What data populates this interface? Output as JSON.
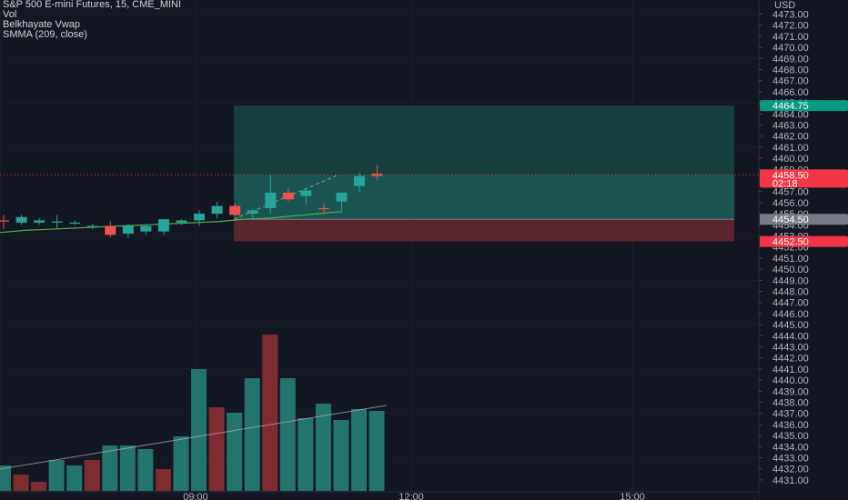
{
  "legend": {
    "symbol": "S&P 500 E-mini Futures, 15, CME_MINI",
    "vol": "Vol",
    "vwap": "Belkhayate Vwap",
    "smma": "SMMA (209, close)"
  },
  "price_scale": {
    "currency": "USD",
    "labels": [
      "4473.00",
      "4472.00",
      "4471.00",
      "4470.00",
      "4469.00",
      "4468.00",
      "4467.00",
      "4466.00",
      "4465.00",
      "4464.00",
      "4463.00",
      "4462.00",
      "4461.00",
      "4460.00",
      "4459.00",
      "4458.00",
      "4457.00",
      "4456.00",
      "4455.00",
      "4454.00",
      "4453.00",
      "4452.00",
      "4451.00",
      "4450.00",
      "4449.00",
      "4448.00",
      "4447.00",
      "4446.00",
      "4445.00",
      "4444.00",
      "4443.00",
      "4442.00",
      "4441.00",
      "4440.00",
      "4439.00",
      "4438.00",
      "4437.00",
      "4436.00",
      "4435.00",
      "4434.00",
      "4433.00",
      "4432.00",
      "4431.00"
    ]
  },
  "time_scale": {
    "labels": [
      "09:00",
      "12:00",
      "15:00"
    ]
  },
  "tags": {
    "target": {
      "text": "4464.75",
      "color": "#089981"
    },
    "current": {
      "text": "4458.50",
      "subtext": "02:18",
      "color": "#f23645"
    },
    "entry": {
      "text": "4454.50",
      "color": "#787b86"
    },
    "stop": {
      "text": "4452.50",
      "color": "#f23645"
    }
  },
  "colors": {
    "up": "#26a69a",
    "down": "#ef5350",
    "vol_up": "#22746d",
    "vol_down": "#7f2c31",
    "smma": "#4caf50",
    "vwap": "#b2b5be",
    "profit_zone": "#1d6b63",
    "loss_zone": "#5b2530"
  },
  "chart_data": {
    "type": "candlestick",
    "interval": "15",
    "candles": [
      {
        "o": 4454.4,
        "h": 4454.9,
        "l": 4453.6,
        "c": 4454.3
      },
      {
        "o": 4454.2,
        "h": 4454.9,
        "l": 4454.0,
        "c": 4454.7
      },
      {
        "o": 4454.2,
        "h": 4454.6,
        "l": 4454.0,
        "c": 4454.4
      },
      {
        "o": 4454.2,
        "h": 4454.9,
        "l": 4453.7,
        "c": 4454.3
      },
      {
        "o": 4454.1,
        "h": 4454.4,
        "l": 4454.0,
        "c": 4454.2
      },
      {
        "o": 4453.8,
        "h": 4454.1,
        "l": 4453.6,
        "c": 4453.9
      },
      {
        "o": 4453.9,
        "h": 4454.3,
        "l": 4452.9,
        "c": 4453.1
      },
      {
        "o": 4453.2,
        "h": 4454.1,
        "l": 4452.8,
        "c": 4453.9
      },
      {
        "o": 4453.4,
        "h": 4454.0,
        "l": 4453.1,
        "c": 4453.9
      },
      {
        "o": 4453.4,
        "h": 4454.5,
        "l": 4453.1,
        "c": 4454.5
      },
      {
        "o": 4454.2,
        "h": 4454.5,
        "l": 4454.0,
        "c": 4454.4
      },
      {
        "o": 4454.4,
        "h": 4455.3,
        "l": 4453.9,
        "c": 4455.0
      },
      {
        "o": 4455.0,
        "h": 4456.1,
        "l": 4454.6,
        "c": 4455.7
      },
      {
        "o": 4455.7,
        "h": 4455.9,
        "l": 4454.8,
        "c": 4454.9
      },
      {
        "o": 4455.0,
        "h": 4455.4,
        "l": 4454.5,
        "c": 4455.3
      },
      {
        "o": 4455.5,
        "h": 4458.5,
        "l": 4455.0,
        "c": 4456.9
      },
      {
        "o": 4456.9,
        "h": 4457.3,
        "l": 4456.1,
        "c": 4456.3
      },
      {
        "o": 4456.6,
        "h": 4457.3,
        "l": 4455.8,
        "c": 4457.1
      },
      {
        "o": 4455.5,
        "h": 4455.9,
        "l": 4455.0,
        "c": 4455.4
      },
      {
        "o": 4456.1,
        "h": 4456.8,
        "l": 4455.3,
        "c": 4456.9
      },
      {
        "o": 4457.5,
        "h": 4458.7,
        "l": 4456.9,
        "c": 4458.4
      },
      {
        "o": 4458.6,
        "h": 4459.4,
        "l": 4458.0,
        "c": 4458.4
      }
    ],
    "volume": [
      14,
      9,
      5,
      17,
      14,
      17,
      25,
      25,
      23,
      12,
      30,
      67,
      46,
      43,
      62,
      86,
      62,
      40,
      48,
      39,
      45,
      44
    ],
    "volume_dir": [
      "up",
      "down",
      "down",
      "up",
      "up",
      "down",
      "up",
      "up",
      "up",
      "down",
      "up",
      "up",
      "down",
      "up",
      "up",
      "down",
      "up",
      "up",
      "up",
      "up",
      "up",
      "up"
    ],
    "smma": [
      4453.3,
      4453.5,
      4453.6,
      4453.7,
      4453.8,
      4453.9,
      4454.0,
      4454.1,
      4454.2,
      4454.3,
      4454.5,
      4454.6,
      4454.8,
      4455.0,
      4455.2
    ],
    "vwap_volume_line": [
      12,
      47
    ],
    "position": {
      "entry": 4454.5,
      "target": 4464.75,
      "stop": 4452.5,
      "current": 4458.5
    },
    "y_range": [
      4430.5,
      4474.2
    ]
  }
}
